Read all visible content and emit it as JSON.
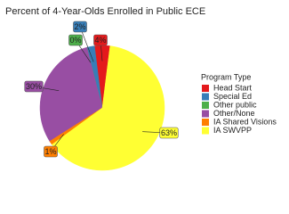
{
  "chart_data": {
    "type": "pie",
    "title": "Percent of 4-Year-Olds Enrolled in Public ECE",
    "legend_title": "Program Type",
    "categories": [
      "Head Start",
      "Special Ed",
      "Other public",
      "Other/None",
      "IA Shared Visions",
      "IA SWVPP"
    ],
    "values": [
      4,
      2,
      0,
      30,
      1,
      63
    ],
    "value_labels": [
      "4%",
      "2%",
      "0%",
      "30%",
      "1%",
      "63%"
    ],
    "colors": [
      "#e41a1c",
      "#377eb8",
      "#4daf4a",
      "#984ea3",
      "#ff7f00",
      "#ffff33"
    ],
    "legend": "right"
  }
}
